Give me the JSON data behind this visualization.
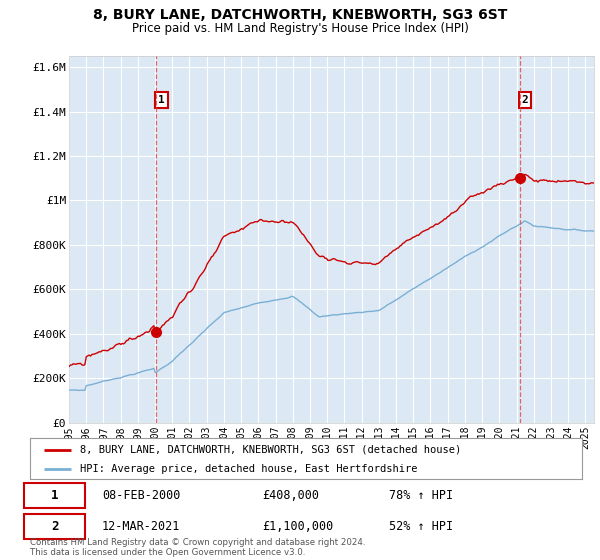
{
  "title": "8, BURY LANE, DATCHWORTH, KNEBWORTH, SG3 6ST",
  "subtitle": "Price paid vs. HM Land Registry's House Price Index (HPI)",
  "fig_bg_color": "#f0f0f0",
  "plot_bg_color": "#dce9f5",
  "outer_bg_color": "#ffffff",
  "red_line_color": "#cc0000",
  "blue_line_color": "#7bafd4",
  "marker_color": "#cc0000",
  "grid_color": "#ffffff",
  "vline_color": "#dd4444",
  "ylim": [
    0,
    1650000
  ],
  "yticks": [
    0,
    200000,
    400000,
    600000,
    800000,
    1000000,
    1200000,
    1400000,
    1600000
  ],
  "ytick_labels": [
    "£0",
    "£200K",
    "£400K",
    "£600K",
    "£800K",
    "£1M",
    "£1.2M",
    "£1.4M",
    "£1.6M"
  ],
  "xstart_year": 1995,
  "xend_year": 2025,
  "legend_entries": [
    "8, BURY LANE, DATCHWORTH, KNEBWORTH, SG3 6ST (detached house)",
    "HPI: Average price, detached house, East Hertfordshire"
  ],
  "annotation1": {
    "label": "1",
    "date": "08-FEB-2000",
    "price": "£408,000",
    "pct": "78% ↑ HPI"
  },
  "annotation2": {
    "label": "2",
    "date": "12-MAR-2021",
    "price": "£1,100,000",
    "pct": "52% ↑ HPI"
  },
  "footer": "Contains HM Land Registry data © Crown copyright and database right 2024.\nThis data is licensed under the Open Government Licence v3.0.",
  "sale1_year": 2000.08,
  "sale1_value": 408000,
  "sale2_year": 2021.19,
  "sale2_value": 1100000
}
